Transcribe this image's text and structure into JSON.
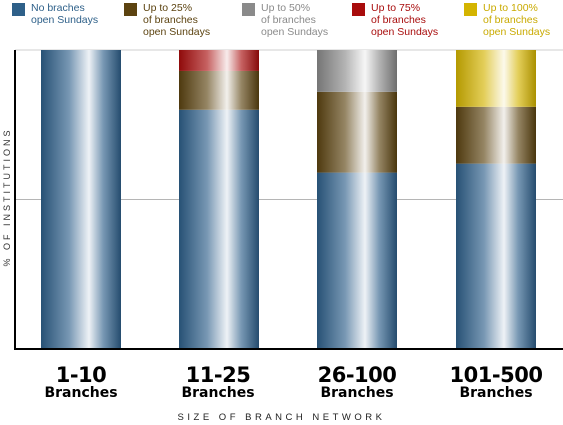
{
  "chart_data": {
    "type": "bar",
    "stacked": true,
    "grid": true,
    "legend_position": "top",
    "ylabel": "% OF INSTITUTIONS",
    "xlabel": "SIZE OF BRANCH NETWORK",
    "ylim": [
      0,
      100
    ],
    "categories": [
      {
        "top": "1-10",
        "bottom": "Branches"
      },
      {
        "top": "11-25",
        "bottom": "Branches"
      },
      {
        "top": "26-100",
        "bottom": "Branches"
      },
      {
        "top": "101-500",
        "bottom": "Branches"
      }
    ],
    "series": [
      {
        "name": "No braches\nopen Sundays",
        "color": "#2e5f8a",
        "values": [
          100,
          80,
          59,
          62
        ]
      },
      {
        "name": "Up to 25%\nof branches\nopen Sundays",
        "color": "#5c4310",
        "values": [
          0,
          13,
          27,
          19
        ]
      },
      {
        "name": "Up to 50%\nof branches\nopen Sundays",
        "color": "#8a8a8a",
        "values": [
          0,
          0,
          14,
          0
        ]
      },
      {
        "name": "Up to 75%\nof branches\nopen Sundays",
        "color": "#a80c0c",
        "values": [
          0,
          7,
          0,
          0
        ]
      },
      {
        "name": "Up to 100%\nof branches\nopen Sundays",
        "color": "#d4b400",
        "values": [
          0,
          0,
          0,
          19
        ]
      }
    ]
  }
}
